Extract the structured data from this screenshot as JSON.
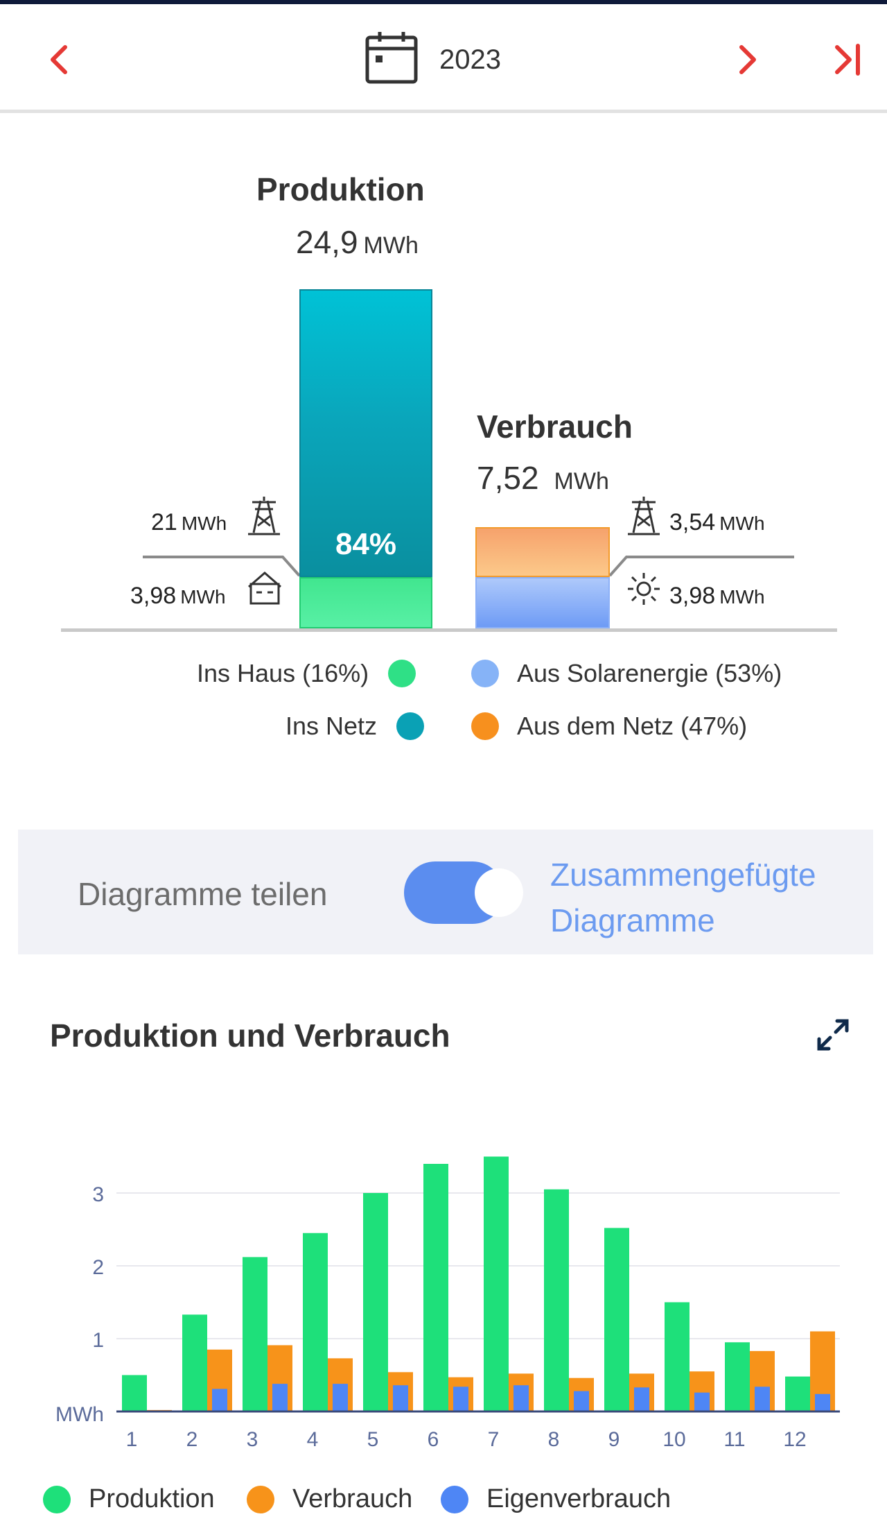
{
  "header": {
    "year": "2023",
    "icons": [
      "chevron-left-icon",
      "calendar-icon",
      "chevron-right-icon",
      "skip-to-end-icon"
    ]
  },
  "summary": {
    "production": {
      "title": "Produktion",
      "value": "24,9",
      "unit": "MWh",
      "percent_label": "84%"
    },
    "consumption": {
      "title": "Verbrauch",
      "value": "7,52",
      "unit": "MWh"
    },
    "to_grid": {
      "value": "21",
      "unit": "MWh"
    },
    "to_house": {
      "value": "3,98",
      "unit": "MWh"
    },
    "from_grid": {
      "value": "3,54",
      "unit": "MWh"
    },
    "from_solar": {
      "value": "3,98",
      "unit": "MWh"
    },
    "legend": {
      "ins_haus": "Ins Haus (16%)",
      "ins_netz": "Ins Netz",
      "aus_solar": "Aus Solarenergie (53%)",
      "aus_netz": "Aus dem Netz (47%)"
    },
    "shares": {
      "house_fraction": 0.16,
      "grid_fraction": 0.84,
      "solar_fraction": 0.53,
      "grid_in_fraction": 0.47
    },
    "colors": {
      "ins_haus": "#2fe086",
      "ins_netz": "#0aa1b5",
      "aus_solar": "#86b3f7",
      "aus_netz": "#f7901e"
    }
  },
  "toggle": {
    "left_label": "Diagramme teilen",
    "right_label_line1": "Zusammengefügte",
    "right_label_line2": "Diagramme",
    "state": "on"
  },
  "chart": {
    "title": "Produktion und Verbrauch"
  },
  "chart_data": {
    "type": "bar",
    "categories": [
      "1",
      "2",
      "3",
      "4",
      "5",
      "6",
      "7",
      "8",
      "9",
      "10",
      "11",
      "12"
    ],
    "ylabel": "MWh",
    "ylim": [
      0,
      3.5
    ],
    "yticks": [
      "1",
      "2",
      "3"
    ],
    "grid": true,
    "legend_position": "bottom",
    "series": [
      {
        "name": "Produktion",
        "color": "#1ee07a",
        "values": [
          0.5,
          1.33,
          2.12,
          2.45,
          3.0,
          3.4,
          3.5,
          3.05,
          2.52,
          1.5,
          0.95,
          0.48
        ]
      },
      {
        "name": "Verbrauch",
        "color": "#f7931a",
        "values": [
          0.02,
          0.85,
          0.91,
          0.73,
          0.54,
          0.47,
          0.52,
          0.46,
          0.52,
          0.55,
          0.83,
          1.1
        ]
      },
      {
        "name": "Eigenverbrauch",
        "color": "#4e86f5",
        "values": [
          0.0,
          0.31,
          0.38,
          0.38,
          0.36,
          0.34,
          0.36,
          0.28,
          0.33,
          0.26,
          0.34,
          0.24
        ]
      }
    ]
  }
}
